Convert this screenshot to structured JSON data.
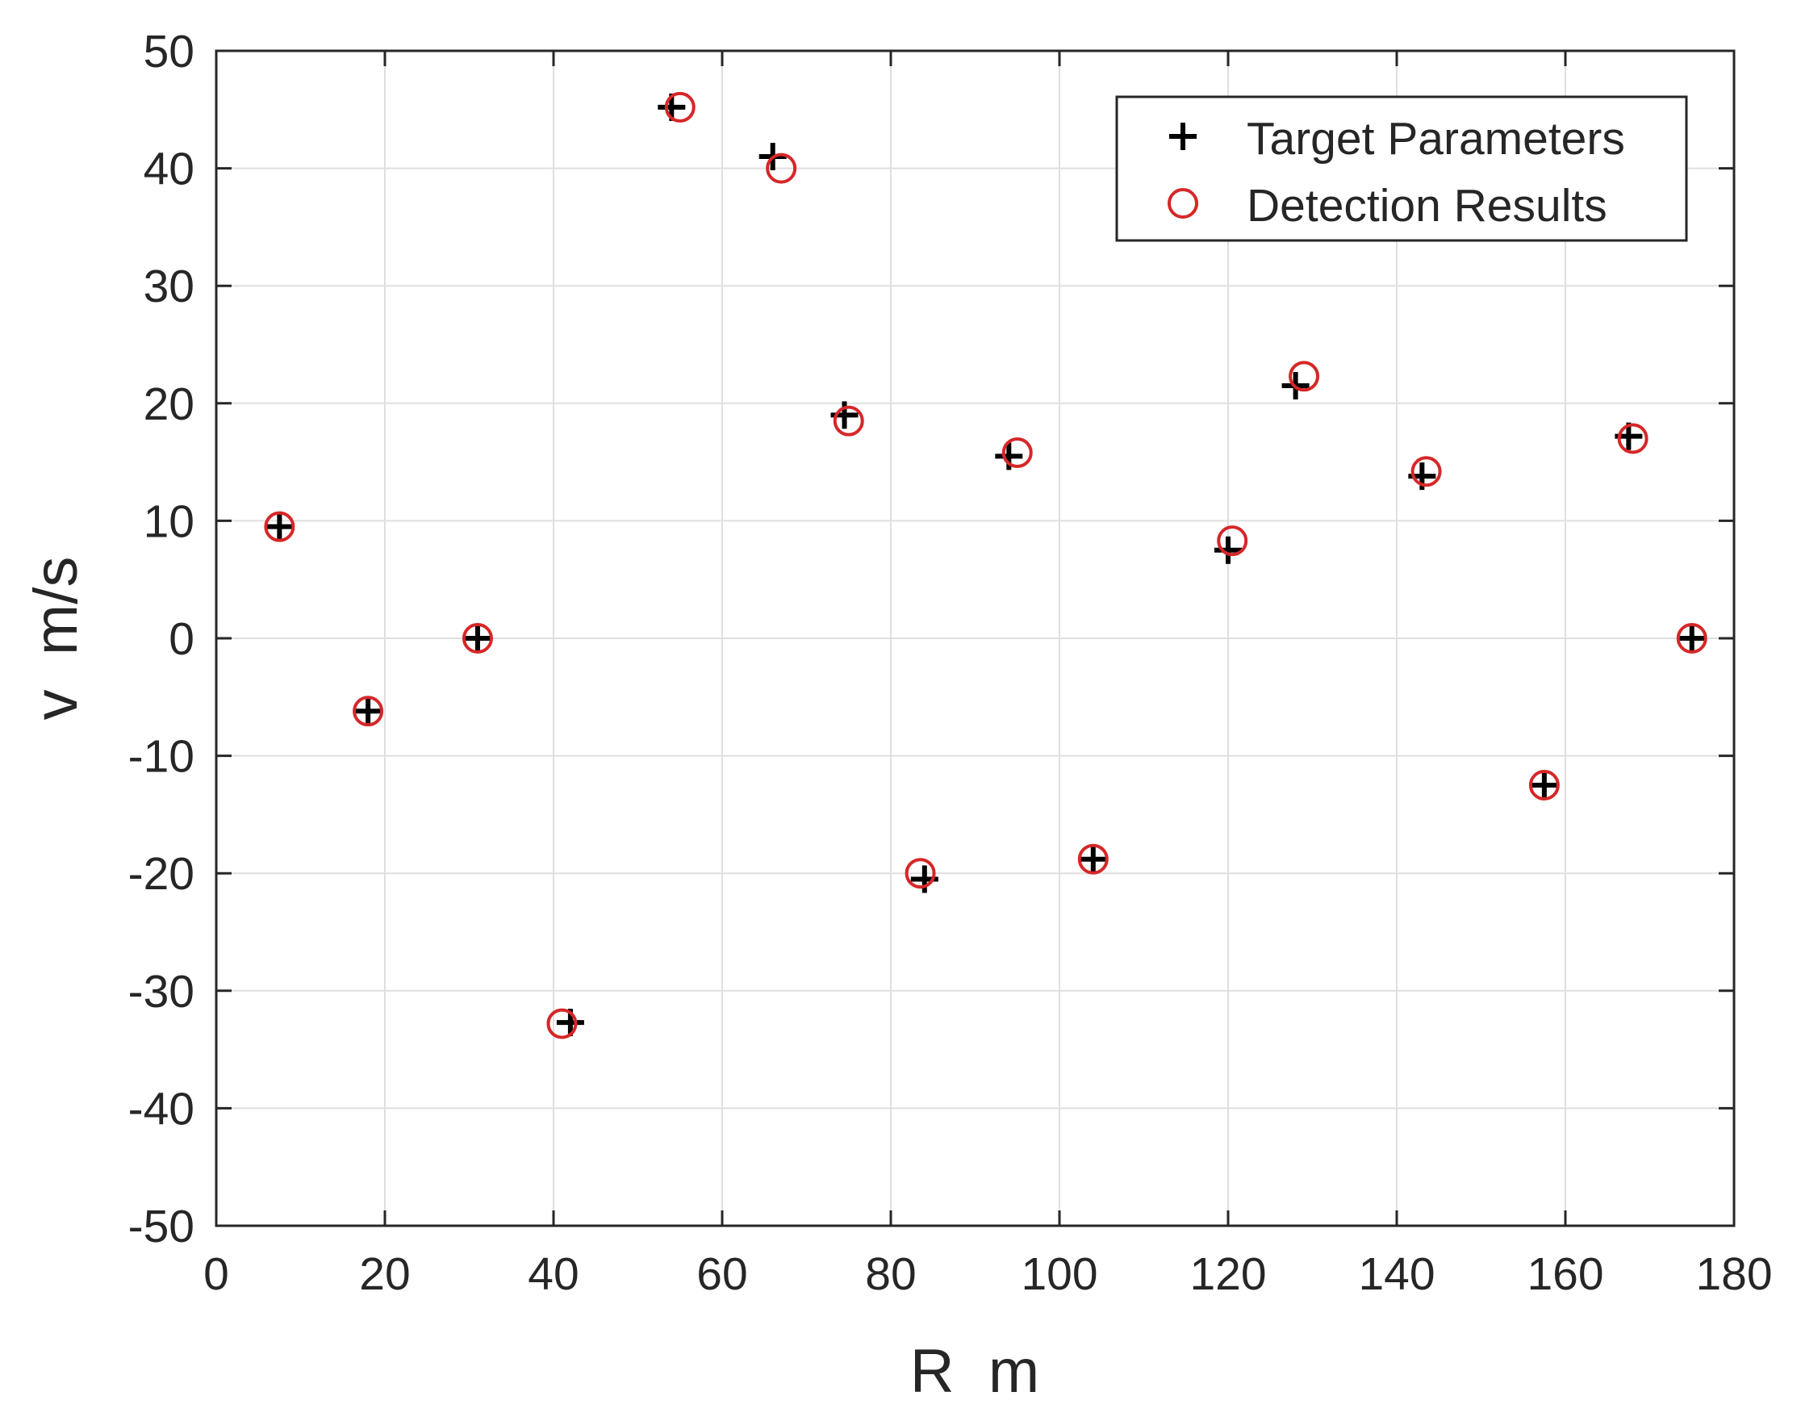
{
  "chart_data": {
    "type": "scatter",
    "title": "",
    "xlabel": "R  m",
    "ylabel": "v  m/s",
    "xlim": [
      0,
      180
    ],
    "ylim": [
      -50,
      50
    ],
    "xticks": [
      0,
      20,
      40,
      60,
      80,
      100,
      120,
      140,
      160,
      180
    ],
    "yticks": [
      -50,
      -40,
      -30,
      -20,
      -10,
      0,
      10,
      20,
      30,
      40,
      50
    ],
    "grid": true,
    "legend_position": "top-right",
    "series": [
      {
        "name": "Target Parameters",
        "marker": "plus",
        "color": "#000000",
        "points": [
          [
            7.5,
            9.5
          ],
          [
            18,
            -6.2
          ],
          [
            31,
            0
          ],
          [
            42,
            -32.7
          ],
          [
            54,
            45.2
          ],
          [
            66,
            41
          ],
          [
            74.5,
            19
          ],
          [
            84,
            -20.5
          ],
          [
            94,
            15.5
          ],
          [
            104,
            -18.8
          ],
          [
            120,
            7.5
          ],
          [
            128,
            21.5
          ],
          [
            143,
            13.8
          ],
          [
            157.5,
            -12.5
          ],
          [
            167.5,
            17.2
          ],
          [
            175,
            0
          ]
        ]
      },
      {
        "name": "Detection Results",
        "marker": "circle",
        "color": "#d62728",
        "points": [
          [
            7.5,
            9.5
          ],
          [
            18,
            -6.2
          ],
          [
            31,
            0
          ],
          [
            41,
            -32.8
          ],
          [
            55,
            45.2
          ],
          [
            67,
            40
          ],
          [
            75,
            18.5
          ],
          [
            83.5,
            -20
          ],
          [
            95,
            15.8
          ],
          [
            104,
            -18.8
          ],
          [
            120.5,
            8.3
          ],
          [
            129,
            22.3
          ],
          [
            143.5,
            14.2
          ],
          [
            157.5,
            -12.5
          ],
          [
            168,
            17
          ],
          [
            175,
            0
          ]
        ]
      }
    ]
  }
}
